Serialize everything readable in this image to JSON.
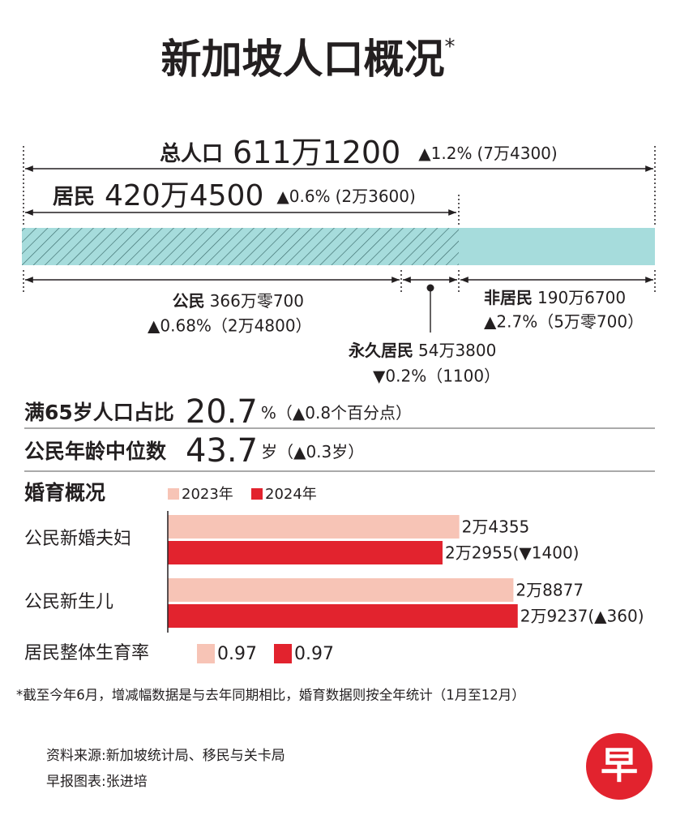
{
  "title": "新加坡人口概况",
  "title_mark": "*",
  "total": {
    "label": "总人口",
    "value": "611万1200",
    "change": "▲1.2%",
    "change_abs": "(7万4300)"
  },
  "residents": {
    "label": "居民",
    "value": "420万4500",
    "change": "▲0.6%",
    "change_abs": "(2万3600)"
  },
  "citizens": {
    "label": "公民",
    "value": "366万零700",
    "change": "▲0.68%（2万4800）"
  },
  "permanent_residents": {
    "label": "永久居民",
    "value": "54万3800",
    "change": "▼0.2%（1100）"
  },
  "non_residents": {
    "label": "非居民",
    "value": "190万6700",
    "change": "▲2.7%（5万零700）"
  },
  "aged_65": {
    "label": "满65岁人口占比",
    "value": "20.7",
    "unit": "%（▲0.8个百分点）"
  },
  "median_age": {
    "label": "公民年龄中位数",
    "value": "43.7",
    "unit": "岁（▲0.3岁）"
  },
  "chart_data": {
    "type": "bar",
    "orientation": "horizontal",
    "title": "婚育概况",
    "categories": [
      "公民新婚夫妇",
      "公民新生儿"
    ],
    "series": [
      {
        "name": "2023年",
        "color": "#f7c4b6",
        "values": [
          24355,
          28877
        ],
        "value_labels": [
          "2万4355",
          "2万8877"
        ]
      },
      {
        "name": "2024年",
        "color": "#e2232e",
        "values": [
          22955,
          29237
        ],
        "value_labels": [
          "2万2955",
          "2万9237"
        ],
        "changes": [
          "(▼1400)",
          "(▲360)"
        ]
      }
    ],
    "xlim": [
      0,
      30000
    ]
  },
  "fertility": {
    "label": "居民整体生育率",
    "values": [
      0.97,
      0.97
    ]
  },
  "footnote": "*截至今年6月，增减幅数据是与去年同期相比，婚育数据则按全年统计（1月至12月）",
  "source": "资料来源:新加坡统计局、移民与关卡局",
  "credit": "早报图表:张进培",
  "logo": "早"
}
